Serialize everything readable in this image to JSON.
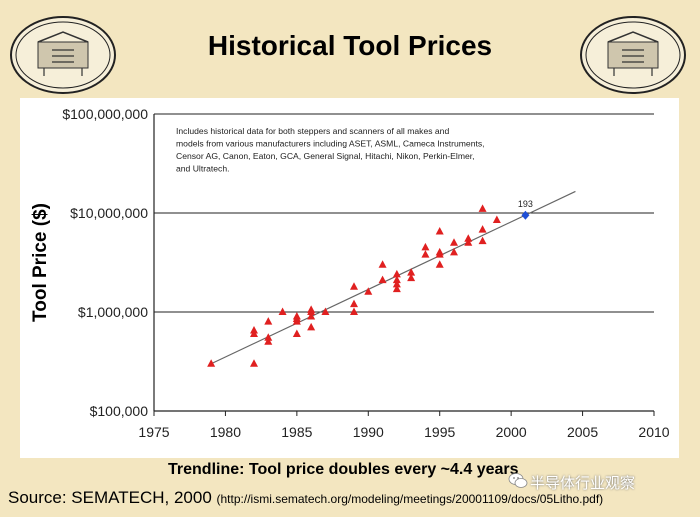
{
  "slide": {
    "title": "Historical Tool Prices",
    "trendline_caption": "Trendline:  Tool price doubles every ~4.4 years",
    "source_label": "Source:  SEMATECH, 2000",
    "source_url": "(http://ismi.sematech.org/modeling/meetings/20001109/docs/05Litho.pdf)",
    "watermark": "半导体行业观察",
    "colors": {
      "background": "#f3e6c0",
      "marker": "#e02020",
      "highlight": "#1f4fd6",
      "trend": "#666666"
    },
    "icons": [
      "printing-press-emblem-icon",
      "printing-press-emblem-icon",
      "wechat-icon"
    ]
  },
  "chart_data": {
    "type": "scatter",
    "title": "",
    "xlabel": "",
    "ylabel": "Tool Price ($)",
    "x_ticks": [
      "1975",
      "1980",
      "1985",
      "1990",
      "1995",
      "2000",
      "2005",
      "2010"
    ],
    "y_ticks": [
      "$100,000",
      "$1,000,000",
      "$10,000,000",
      "$100,000,000"
    ],
    "xlim": [
      1975,
      2010
    ],
    "ylim": [
      100000,
      100000000
    ],
    "y_scale": "log",
    "grid": "horizontal",
    "annotation": "Includes historical data for both steppers and scanners of all makes and models from various manufacturers including ASET, ASML, Cameca Instruments, Censor AG, Canon, Eaton, GCA, General Signal, Hitachi, Nikon, Perkin-Elmer, and Ultratech.",
    "series": [
      {
        "marker": "triangle",
        "points": [
          [
            1979,
            300000
          ],
          [
            1982,
            300000
          ],
          [
            1982,
            600000
          ],
          [
            1982,
            650000
          ],
          [
            1983,
            500000
          ],
          [
            1983,
            550000
          ],
          [
            1983,
            800000
          ],
          [
            1984,
            1000000
          ],
          [
            1985,
            600000
          ],
          [
            1985,
            800000
          ],
          [
            1985,
            850000
          ],
          [
            1985,
            900000
          ],
          [
            1986,
            700000
          ],
          [
            1986,
            900000
          ],
          [
            1986,
            1000000
          ],
          [
            1986,
            1050000
          ],
          [
            1987,
            1000000
          ],
          [
            1989,
            1000000
          ],
          [
            1989,
            1200000
          ],
          [
            1989,
            1800000
          ],
          [
            1990,
            1600000
          ],
          [
            1991,
            2100000
          ],
          [
            1991,
            3000000
          ],
          [
            1992,
            1700000
          ],
          [
            1992,
            1900000
          ],
          [
            1992,
            2100000
          ],
          [
            1992,
            2400000
          ],
          [
            1993,
            2200000
          ],
          [
            1993,
            2500000
          ],
          [
            1994,
            3800000
          ],
          [
            1994,
            4500000
          ],
          [
            1995,
            3000000
          ],
          [
            1995,
            3800000
          ],
          [
            1995,
            4000000
          ],
          [
            1995,
            6500000
          ],
          [
            1996,
            4000000
          ],
          [
            1996,
            5000000
          ],
          [
            1997,
            5000000
          ],
          [
            1997,
            5500000
          ],
          [
            1998,
            5200000
          ],
          [
            1998,
            6800000
          ],
          [
            1998,
            11000000
          ],
          [
            1999,
            8500000
          ]
        ]
      },
      {
        "marker": "diamond",
        "label": "193",
        "points": [
          [
            2001,
            9500000
          ]
        ]
      }
    ],
    "trendline": {
      "doubling_years": 4.4,
      "from": [
        1979,
        300000
      ],
      "to": [
        2004.5,
        16500000
      ]
    }
  }
}
